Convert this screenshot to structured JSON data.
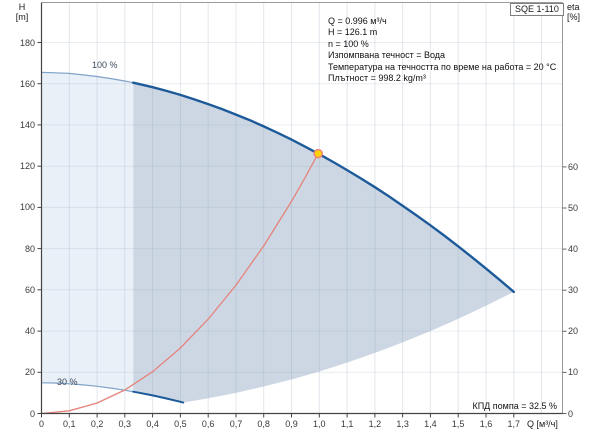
{
  "header": {
    "pump_model": "SQE 1-110"
  },
  "axes": {
    "left_title_line1": "H",
    "left_title_line2": "[m]",
    "right_title_line1": "eta",
    "right_title_line2": "[%]",
    "x_title": "Q [м³/ч]"
  },
  "annotations": {
    "duty_lines": [
      "Q = 0.996 м³/ч",
      "H = 126.1 m",
      "n = 100 %",
      "Изпомпвана течност = Вода",
      "Температура на течността по време на работа = 20 °C",
      "Плътност = 998.2 kg/m³"
    ],
    "efficiency_label": "КПД помпа = 32.5 %",
    "curve_label_100": "100 %",
    "curve_label_30": "30 %"
  },
  "chart_data": {
    "type": "line",
    "title": "SQE 1-110",
    "xlabel": "Q [м³/ч]",
    "ylabel_left": "H [m]",
    "ylabel_right": "eta [%]",
    "xlim": [
      0,
      1.88
    ],
    "ylim_left": [
      0,
      199.5
    ],
    "ylim_right": [
      0,
      100
    ],
    "grid": true,
    "x_ticks": {
      "values": [
        0,
        0.1,
        0.2,
        0.3,
        0.4,
        0.5,
        0.6,
        0.7,
        0.8,
        0.9,
        1.0,
        1.1,
        1.2,
        1.3,
        1.4,
        1.5,
        1.6,
        1.7
      ],
      "labels": [
        "0",
        "0,1",
        "0,2",
        "0,3",
        "0,4",
        "0,5",
        "0,6",
        "0,7",
        "0,8",
        "0,9",
        "1,0",
        "1,1",
        "1,2",
        "1,3",
        "1,4",
        "1,5",
        "1,6",
        "1,7"
      ]
    },
    "y_left_ticks": {
      "values": [
        0,
        20,
        40,
        60,
        80,
        100,
        120,
        140,
        160,
        180
      ],
      "labels": [
        "0",
        "20",
        "40",
        "60",
        "80",
        "100",
        "120",
        "140",
        "160",
        "180"
      ]
    },
    "y_right_ticks": {
      "values": [
        0,
        10,
        20,
        30,
        40,
        50,
        60
      ],
      "labels": [
        "0",
        "10",
        "20",
        "30",
        "40",
        "50",
        "60"
      ]
    },
    "grid_x_values": [
      0.1,
      0.2,
      0.3,
      0.4,
      0.5,
      0.6,
      0.7,
      0.8,
      0.9,
      1.0,
      1.1,
      1.2,
      1.3,
      1.4,
      1.5,
      1.6,
      1.7,
      1.8
    ],
    "grid_y_values": [
      20,
      40,
      60,
      80,
      100,
      120,
      140,
      160,
      180
    ],
    "split_q": 0.33,
    "operating_point": {
      "q": 0.996,
      "h": 126.1,
      "n_percent": 100,
      "eta_percent": 32.5
    },
    "series": [
      {
        "id": "speed_100",
        "name": "pump curve at 100 % speed",
        "label": "100 %",
        "points": [
          [
            0,
            165.5
          ],
          [
            0.05,
            165.3
          ],
          [
            0.1,
            165.0
          ],
          [
            0.15,
            164.3
          ],
          [
            0.2,
            163.5
          ],
          [
            0.25,
            162.5
          ],
          [
            0.3,
            161.3
          ],
          [
            0.33,
            160.5
          ],
          [
            0.35,
            159.9
          ],
          [
            0.4,
            158.3
          ],
          [
            0.45,
            156.5
          ],
          [
            0.5,
            154.6
          ],
          [
            0.55,
            152.4
          ],
          [
            0.6,
            150.1
          ],
          [
            0.65,
            147.7
          ],
          [
            0.7,
            145.0
          ],
          [
            0.75,
            142.3
          ],
          [
            0.8,
            139.3
          ],
          [
            0.85,
            136.2
          ],
          [
            0.9,
            132.9
          ],
          [
            0.95,
            129.4
          ],
          [
            1.0,
            125.8
          ],
          [
            1.05,
            122.0
          ],
          [
            1.1,
            118.1
          ],
          [
            1.15,
            114.0
          ],
          [
            1.2,
            109.8
          ],
          [
            1.25,
            105.4
          ],
          [
            1.3,
            100.8
          ],
          [
            1.35,
            96.1
          ],
          [
            1.4,
            91.3
          ],
          [
            1.45,
            86.3
          ],
          [
            1.5,
            81.1
          ],
          [
            1.55,
            75.8
          ],
          [
            1.6,
            70.3
          ],
          [
            1.65,
            64.7
          ],
          [
            1.7,
            59.0
          ]
        ]
      },
      {
        "id": "speed_30",
        "name": "pump curve at 30 % speed",
        "label": "30 %",
        "points": [
          [
            0,
            14.9
          ],
          [
            0.05,
            14.8
          ],
          [
            0.1,
            14.4
          ],
          [
            0.15,
            13.9
          ],
          [
            0.2,
            13.2
          ],
          [
            0.25,
            12.3
          ],
          [
            0.3,
            11.3
          ],
          [
            0.33,
            10.6
          ],
          [
            0.35,
            10.1
          ],
          [
            0.4,
            8.8
          ],
          [
            0.45,
            7.3
          ],
          [
            0.5,
            5.7
          ],
          [
            0.51,
            5.3
          ]
        ]
      },
      {
        "id": "max_flow_boundary",
        "name": "duty envelope lower boundary (affinity parabola)",
        "points": [
          [
            0.51,
            5.3
          ],
          [
            0.6,
            7.4
          ],
          [
            0.7,
            10.0
          ],
          [
            0.8,
            13.1
          ],
          [
            0.9,
            16.5
          ],
          [
            1.0,
            20.4
          ],
          [
            1.1,
            24.7
          ],
          [
            1.2,
            29.4
          ],
          [
            1.3,
            34.5
          ],
          [
            1.4,
            40.0
          ],
          [
            1.5,
            45.9
          ],
          [
            1.6,
            52.3
          ],
          [
            1.7,
            59.0
          ]
        ]
      },
      {
        "id": "system_curve",
        "name": "system curve through duty point",
        "points": [
          [
            0,
            0
          ],
          [
            0.1,
            1.3
          ],
          [
            0.2,
            5.1
          ],
          [
            0.3,
            11.4
          ],
          [
            0.4,
            20.3
          ],
          [
            0.5,
            31.8
          ],
          [
            0.6,
            45.8
          ],
          [
            0.7,
            62.3
          ],
          [
            0.8,
            81.3
          ],
          [
            0.9,
            102.9
          ],
          [
            0.95,
            114.7
          ],
          [
            0.996,
            126.1
          ]
        ]
      }
    ],
    "colors": {
      "envelope_light": "#e7eef7",
      "envelope_dark": "#c6d2e0",
      "curve_main": "#1d5a99",
      "curve_thin": "#7fa3c9",
      "system_curve": "#e5837b",
      "marker_fill": "#ffd400",
      "marker_stroke": "#ef8378",
      "grid": "#8fa0b4",
      "axis_dark": "#444444",
      "axis_light": "#9a9a9a",
      "text": "#222222"
    }
  }
}
